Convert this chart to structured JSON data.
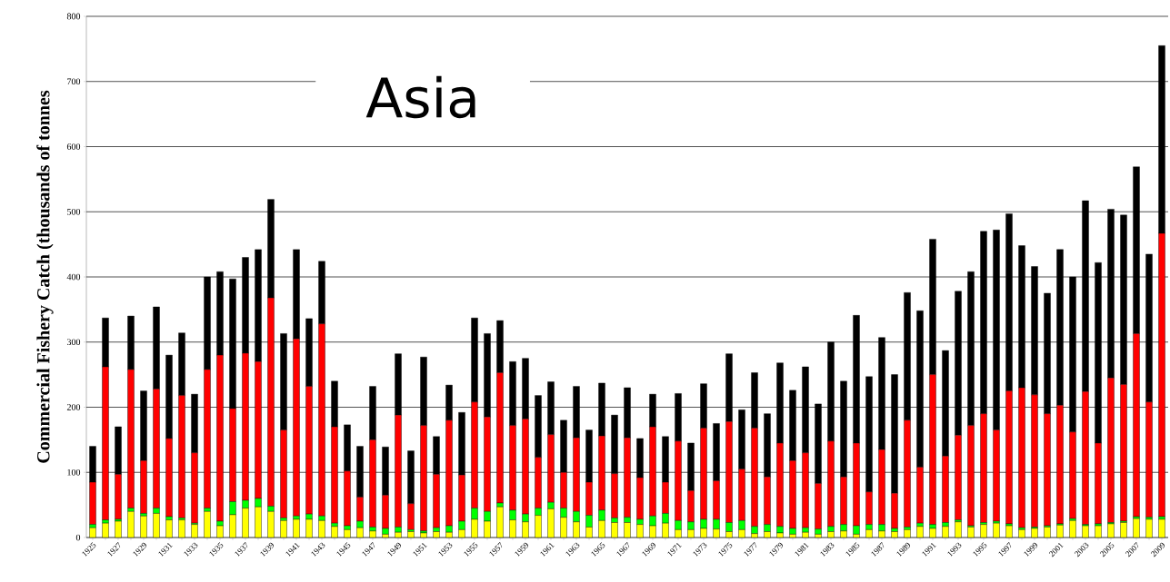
{
  "chart_data": {
    "type": "bar",
    "title": "Asia",
    "ylabel": "Commercial Fishery Catch (thousands of tonnes",
    "categories": [
      "1925",
      null,
      "1927",
      null,
      "1929",
      null,
      "1931",
      null,
      "1933",
      null,
      "1935",
      null,
      "1937",
      null,
      "1939",
      null,
      "1941",
      null,
      "1943",
      null,
      "1945",
      null,
      "1947",
      null,
      "1949",
      null,
      "1951",
      null,
      "1953",
      null,
      "1955",
      null,
      "1957",
      null,
      "1959",
      null,
      "1961",
      null,
      "1963",
      null,
      "1965",
      null,
      "1967",
      null,
      "1969",
      null,
      "1971",
      null,
      "1973",
      null,
      "1975",
      null,
      "1977",
      null,
      "1979",
      null,
      "1981",
      null,
      "1983",
      null,
      "1985",
      null,
      "1987",
      null,
      "1989",
      null,
      "1991",
      null,
      "1993",
      null,
      "1995",
      null,
      "1997",
      null,
      "1999",
      null,
      "2001",
      null,
      "2003",
      null,
      "2005",
      null,
      "2007",
      null,
      "2009"
    ],
    "stacked": true,
    "grid": "y",
    "ylim": [
      0,
      800
    ],
    "yticks": [
      0,
      100,
      200,
      300,
      400,
      500,
      600,
      700,
      800
    ],
    "series": [
      {
        "color": "#ffff00",
        "values": [
          15,
          22,
          25,
          40,
          33,
          37,
          27,
          27,
          20,
          40,
          18,
          35,
          45,
          47,
          40,
          26,
          28,
          28,
          26,
          17,
          12,
          15,
          10,
          5,
          8,
          9,
          7,
          9,
          8,
          12,
          28,
          25,
          47,
          27,
          24,
          34,
          44,
          31,
          24,
          16,
          26,
          23,
          23,
          20,
          18,
          22,
          12,
          12,
          14,
          13,
          9,
          12,
          6,
          9,
          7,
          5,
          8,
          5,
          9,
          10,
          5,
          12,
          10,
          9,
          12,
          17,
          14,
          17,
          24,
          16,
          20,
          22,
          18,
          12,
          14,
          16,
          19,
          26,
          18,
          18,
          21,
          23,
          29,
          28,
          28
        ]
      },
      {
        "color": "#00ff00",
        "values": [
          5,
          5,
          3,
          5,
          4,
          8,
          5,
          3,
          2,
          5,
          7,
          20,
          12,
          13,
          8,
          4,
          5,
          8,
          7,
          5,
          6,
          10,
          6,
          9,
          8,
          3,
          3,
          6,
          10,
          13,
          17,
          15,
          6,
          15,
          12,
          11,
          10,
          14,
          16,
          18,
          16,
          7,
          8,
          8,
          15,
          15,
          14,
          12,
          14,
          15,
          14,
          14,
          11,
          11,
          10,
          9,
          7,
          8,
          8,
          10,
          13,
          8,
          10,
          5,
          4,
          5,
          6,
          6,
          3,
          2,
          3,
          3,
          3,
          3,
          2,
          2,
          2,
          3,
          2,
          3,
          2,
          2,
          3,
          3,
          4
        ]
      },
      {
        "color": "#ff0000",
        "values": [
          65,
          235,
          69,
          213,
          81,
          183,
          120,
          188,
          108,
          213,
          255,
          143,
          226,
          210,
          320,
          135,
          272,
          196,
          295,
          148,
          84,
          37,
          134,
          51,
          172,
          40,
          162,
          82,
          162,
          71,
          163,
          145,
          200,
          130,
          146,
          78,
          104,
          55,
          113,
          51,
          114,
          68,
          122,
          64,
          137,
          48,
          122,
          48,
          140,
          59,
          155,
          79,
          151,
          73,
          128,
          104,
          115,
          70,
          131,
          73,
          127,
          50,
          115,
          54,
          164,
          86,
          230,
          102,
          130,
          154,
          167,
          140,
          204,
          215,
          203,
          172,
          182,
          133,
          204,
          124,
          222,
          210,
          281,
          177,
          435
        ]
      },
      {
        "color": "#000000",
        "values": [
          55,
          75,
          73,
          82,
          107,
          126,
          128,
          96,
          90,
          142,
          128,
          199,
          147,
          172,
          151,
          148,
          137,
          104,
          96,
          70,
          71,
          78,
          82,
          74,
          94,
          81,
          105,
          58,
          54,
          96,
          129,
          128,
          80,
          98,
          93,
          95,
          81,
          80,
          79,
          80,
          81,
          90,
          77,
          60,
          50,
          70,
          73,
          73,
          68,
          88,
          104,
          91,
          85,
          97,
          123,
          108,
          132,
          122,
          152,
          147,
          196,
          177,
          172,
          182,
          196,
          240,
          208,
          162,
          221,
          236,
          280,
          307,
          272,
          218,
          197,
          185,
          239,
          238,
          293,
          277,
          259,
          260,
          256,
          227,
          288
        ]
      }
    ]
  }
}
